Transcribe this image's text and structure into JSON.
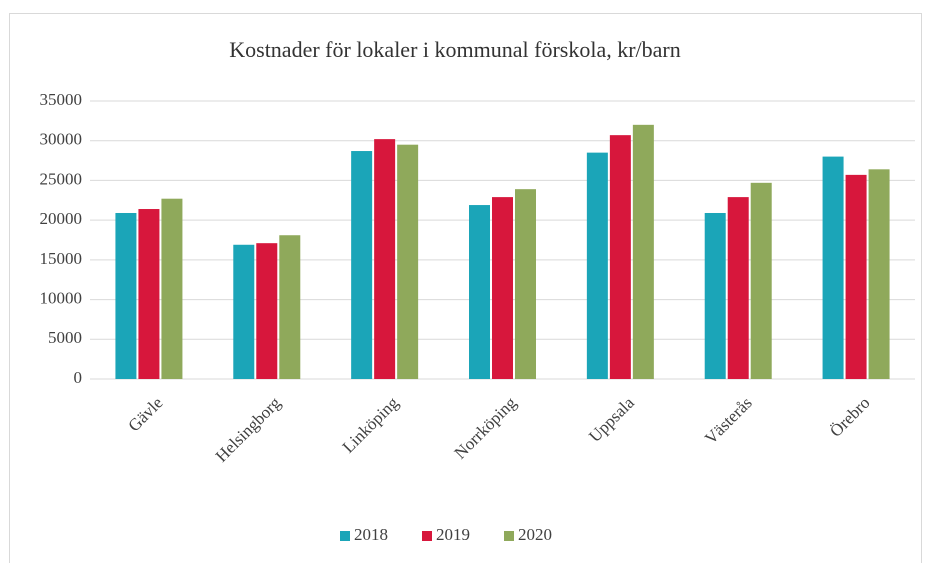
{
  "chart_data": {
    "type": "bar",
    "title": "Kostnader för lokaler i kommunal förskola, kr/barn",
    "categories": [
      "Gävle",
      "Helsingborg",
      "Linköping",
      "Norrköping",
      "Uppsala",
      "Västerås",
      "Örebro"
    ],
    "series": [
      {
        "name": "2018",
        "color": "#1ba5b8",
        "values": [
          20900,
          16900,
          28700,
          21900,
          28500,
          20900,
          28000
        ]
      },
      {
        "name": "2019",
        "color": "#d7173c",
        "values": [
          21400,
          17100,
          30200,
          22900,
          30700,
          22900,
          25700
        ]
      },
      {
        "name": "2020",
        "color": "#8fa95b",
        "values": [
          22700,
          18100,
          29500,
          23900,
          32000,
          24700,
          26400
        ]
      }
    ],
    "ylim": [
      0,
      35000
    ],
    "yticks": [
      0,
      5000,
      10000,
      15000,
      20000,
      25000,
      30000,
      35000
    ],
    "grid": true,
    "legend": "bottom"
  }
}
